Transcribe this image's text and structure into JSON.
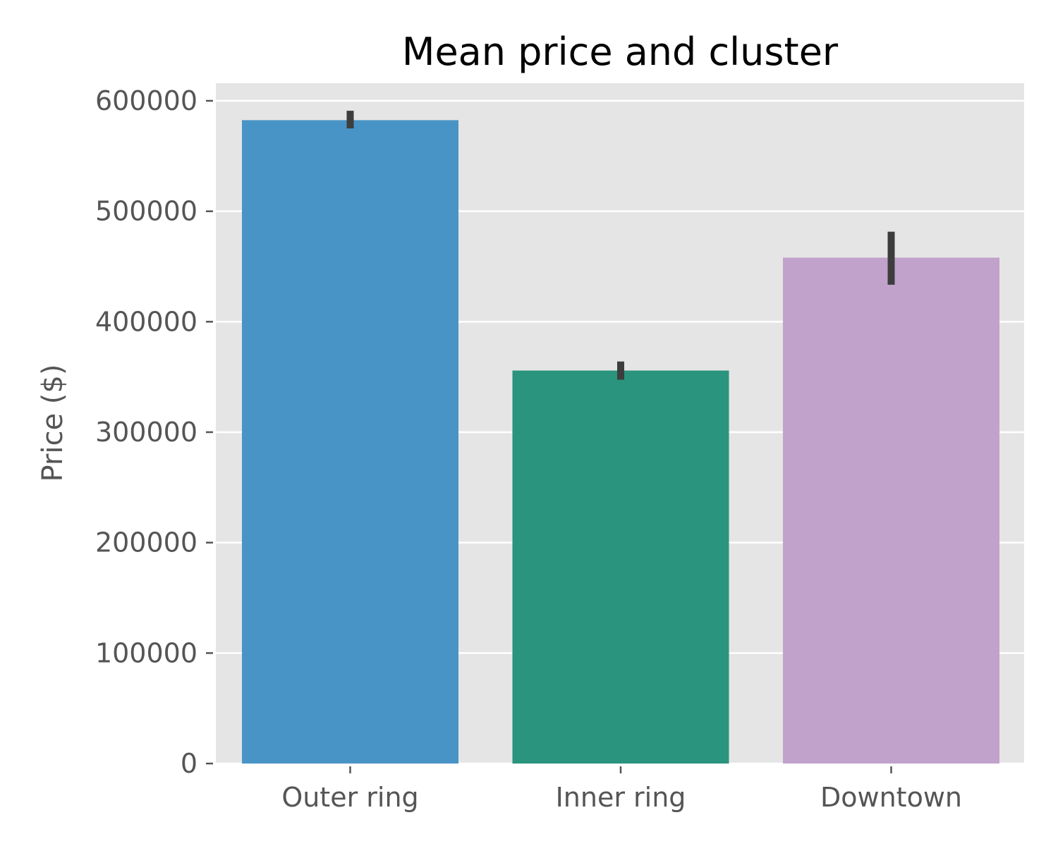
{
  "chart_data": {
    "type": "bar",
    "title": "Mean price and cluster",
    "xlabel": "",
    "ylabel": "Price ($)",
    "categories": [
      "Outer ring",
      "Inner ring",
      "Downtown"
    ],
    "values": [
      582500,
      355800,
      458000
    ],
    "error_bars": [
      {
        "low": 575000,
        "high": 591000
      },
      {
        "low": 347500,
        "high": 364000
      },
      {
        "low": 433500,
        "high": 481500
      }
    ],
    "ylim": [
      0,
      617000
    ],
    "yticks": [
      0,
      100000,
      200000,
      300000,
      400000,
      500000,
      600000
    ],
    "ytick_labels": [
      "0",
      "100000",
      "200000",
      "300000",
      "400000",
      "500000",
      "600000"
    ],
    "colors": [
      "#4994c6",
      "#2a947e",
      "#c1a2cb"
    ],
    "error_color": "#3d3d3d",
    "background_color": "#e5e5e5",
    "grid": true,
    "grid_axis": "y",
    "legend": "none"
  }
}
